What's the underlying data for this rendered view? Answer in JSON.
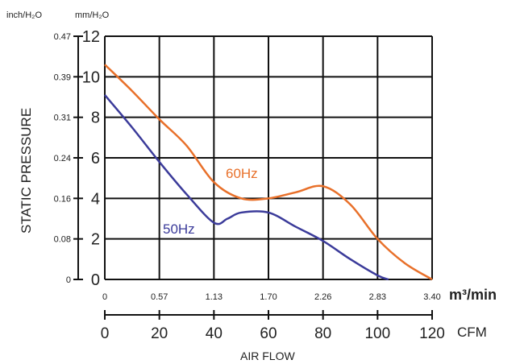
{
  "chart_data": {
    "type": "line",
    "ylabel": "STATIC PRESSURE",
    "xlabel": "AIR FLOW",
    "y_unit_left": "inch/H₂O",
    "y_unit_right": "mm/H₂O",
    "x_unit_top": "m³/min",
    "x_unit_bottom": "CFM",
    "y_ticks_mm": [
      "0",
      "2",
      "4",
      "6",
      "8",
      "10",
      "12"
    ],
    "y_ticks_inch": [
      "0",
      "0.08",
      "0.16",
      "0.24",
      "0.31",
      "0.39",
      "0.47"
    ],
    "x_ticks_m3": [
      "0",
      "0.57",
      "1.13",
      "1.70",
      "2.26",
      "2.83",
      "3.40"
    ],
    "x_ticks_cfm": [
      "0",
      "20",
      "40",
      "60",
      "80",
      "100",
      "120"
    ],
    "xlim": [
      0,
      120
    ],
    "ylim": [
      0,
      12
    ],
    "grid": true,
    "series": [
      {
        "name": "60Hz",
        "color": "#e8702a",
        "x": [
          0,
          10,
          20,
          30,
          40,
          50,
          60,
          70,
          80,
          90,
          100,
          110,
          120
        ],
        "y": [
          10.6,
          9.3,
          7.9,
          6.6,
          4.8,
          4.0,
          4.0,
          4.3,
          4.6,
          3.7,
          2.0,
          0.8,
          0.0
        ]
      },
      {
        "name": "50Hz",
        "color": "#3b3b9a",
        "x": [
          0,
          10,
          20,
          30,
          40,
          45,
          50,
          60,
          70,
          80,
          90,
          100,
          104
        ],
        "y": [
          9.1,
          7.5,
          5.8,
          4.2,
          2.8,
          3.0,
          3.3,
          3.3,
          2.6,
          1.9,
          1.0,
          0.2,
          0.0
        ]
      }
    ]
  }
}
